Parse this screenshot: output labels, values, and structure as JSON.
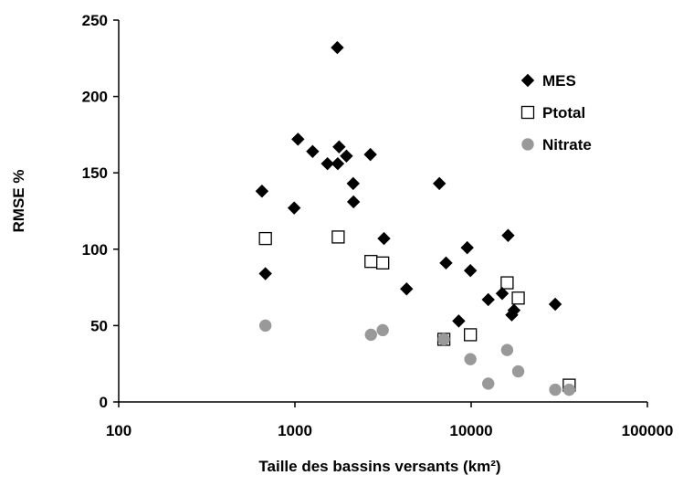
{
  "chart_data": {
    "type": "scatter",
    "title": "",
    "xlabel": "Taille des bassins versants (km²)",
    "ylabel": "RMSE %",
    "xscale": "log",
    "xlim": [
      100,
      100000
    ],
    "ylim": [
      0,
      250
    ],
    "xticks": [
      100,
      1000,
      10000,
      100000
    ],
    "xtick_labels": [
      "100",
      "1000",
      "10000",
      "100000"
    ],
    "yticks": [
      0,
      50,
      100,
      150,
      200,
      250
    ],
    "ytick_labels": [
      "0",
      "50",
      "100",
      "150",
      "200",
      "250"
    ],
    "grid": false,
    "legend_position": "top-right",
    "series": [
      {
        "name": "MES",
        "marker": "diamond",
        "color": "#000000",
        "points": [
          [
            650,
            138
          ],
          [
            680,
            84
          ],
          [
            990,
            127
          ],
          [
            1040,
            172
          ],
          [
            1260,
            164
          ],
          [
            1530,
            156
          ],
          [
            1740,
            232
          ],
          [
            1750,
            156
          ],
          [
            1780,
            167
          ],
          [
            1960,
            161
          ],
          [
            2140,
            143
          ],
          [
            2150,
            131
          ],
          [
            2680,
            162
          ],
          [
            3200,
            107
          ],
          [
            4300,
            74
          ],
          [
            6600,
            143
          ],
          [
            7200,
            91
          ],
          [
            8500,
            53
          ],
          [
            9500,
            101
          ],
          [
            9900,
            86
          ],
          [
            12500,
            67
          ],
          [
            15000,
            71
          ],
          [
            16200,
            109
          ],
          [
            17000,
            57
          ],
          [
            17500,
            60
          ],
          [
            30000,
            64
          ]
        ]
      },
      {
        "name": "Ptotal",
        "marker": "square-open",
        "color": "#000000",
        "points": [
          [
            680,
            107
          ],
          [
            1760,
            108
          ],
          [
            2700,
            92
          ],
          [
            3150,
            91
          ],
          [
            7000,
            41
          ],
          [
            9900,
            44
          ],
          [
            16000,
            78
          ],
          [
            18500,
            68
          ],
          [
            36000,
            11
          ]
        ]
      },
      {
        "name": "Nitrate",
        "marker": "circle",
        "color": "#999999",
        "points": [
          [
            680,
            50
          ],
          [
            2700,
            44
          ],
          [
            3150,
            47
          ],
          [
            7000,
            41
          ],
          [
            9900,
            28
          ],
          [
            12500,
            12
          ],
          [
            16000,
            34
          ],
          [
            18500,
            20
          ],
          [
            30000,
            8
          ],
          [
            36000,
            8
          ]
        ]
      }
    ]
  }
}
